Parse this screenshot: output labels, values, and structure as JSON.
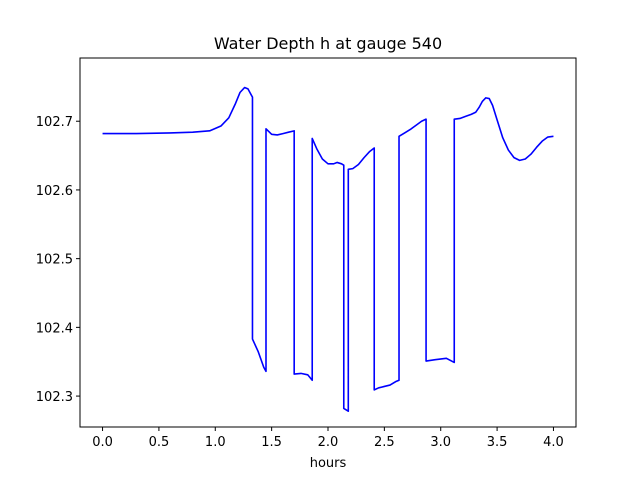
{
  "chart_data": {
    "type": "line",
    "title": "Water Depth h at gauge 540",
    "xlabel": "hours",
    "ylabel": "",
    "xlim": [
      -0.2,
      4.2
    ],
    "ylim": [
      102.255,
      102.792
    ],
    "x_ticks": [
      0.0,
      0.5,
      1.0,
      1.5,
      2.0,
      2.5,
      3.0,
      3.5,
      4.0
    ],
    "x_tick_labels": [
      "0.0",
      "0.5",
      "1.0",
      "1.5",
      "2.0",
      "2.5",
      "3.0",
      "3.5",
      "4.0"
    ],
    "y_ticks": [
      102.3,
      102.4,
      102.5,
      102.6,
      102.7
    ],
    "y_tick_labels": [
      "102.3",
      "102.4",
      "102.5",
      "102.6",
      "102.7"
    ],
    "grid": false,
    "legend": "none",
    "line_color": "#0000ff",
    "series": [
      {
        "x": [
          0.0,
          0.3,
          0.6,
          0.8,
          0.95,
          1.05,
          1.12,
          1.18,
          1.22,
          1.26,
          1.29,
          1.32,
          1.33,
          1.33,
          1.38,
          1.43,
          1.45,
          1.45,
          1.5,
          1.55,
          1.6,
          1.65,
          1.7,
          1.7,
          1.76,
          1.82,
          1.86,
          1.86,
          1.9,
          1.95,
          2.0,
          2.05,
          2.08,
          2.12,
          2.14,
          2.14,
          2.16,
          2.18,
          2.18,
          2.22,
          2.27,
          2.32,
          2.37,
          2.41,
          2.41,
          2.45,
          2.5,
          2.55,
          2.6,
          2.63,
          2.63,
          2.68,
          2.73,
          2.78,
          2.83,
          2.87,
          2.87,
          2.95,
          3.05,
          3.12,
          3.12,
          3.17,
          3.22,
          3.27,
          3.31,
          3.34,
          3.37,
          3.4,
          3.43,
          3.46,
          3.5,
          3.55,
          3.6,
          3.65,
          3.7,
          3.75,
          3.8,
          3.85,
          3.9,
          3.95,
          4.0
        ],
        "y": [
          102.682,
          102.682,
          102.683,
          102.684,
          102.686,
          102.693,
          102.705,
          102.726,
          102.742,
          102.749,
          102.747,
          102.738,
          102.735,
          102.383,
          102.365,
          102.342,
          102.336,
          102.689,
          102.681,
          102.68,
          102.682,
          102.684,
          102.686,
          102.332,
          102.333,
          102.331,
          102.323,
          102.675,
          102.66,
          102.645,
          102.638,
          102.638,
          102.64,
          102.638,
          102.636,
          102.282,
          102.28,
          102.278,
          102.63,
          102.631,
          102.637,
          102.647,
          102.656,
          102.661,
          102.309,
          102.312,
          102.314,
          102.316,
          102.321,
          102.323,
          102.678,
          102.683,
          102.688,
          102.694,
          102.7,
          102.703,
          102.351,
          102.353,
          102.355,
          102.349,
          102.703,
          102.704,
          102.707,
          102.71,
          102.713,
          102.72,
          102.729,
          102.734,
          102.733,
          102.723,
          102.702,
          102.676,
          102.658,
          102.647,
          102.643,
          102.645,
          102.652,
          102.662,
          102.671,
          102.677,
          102.678
        ]
      }
    ]
  }
}
